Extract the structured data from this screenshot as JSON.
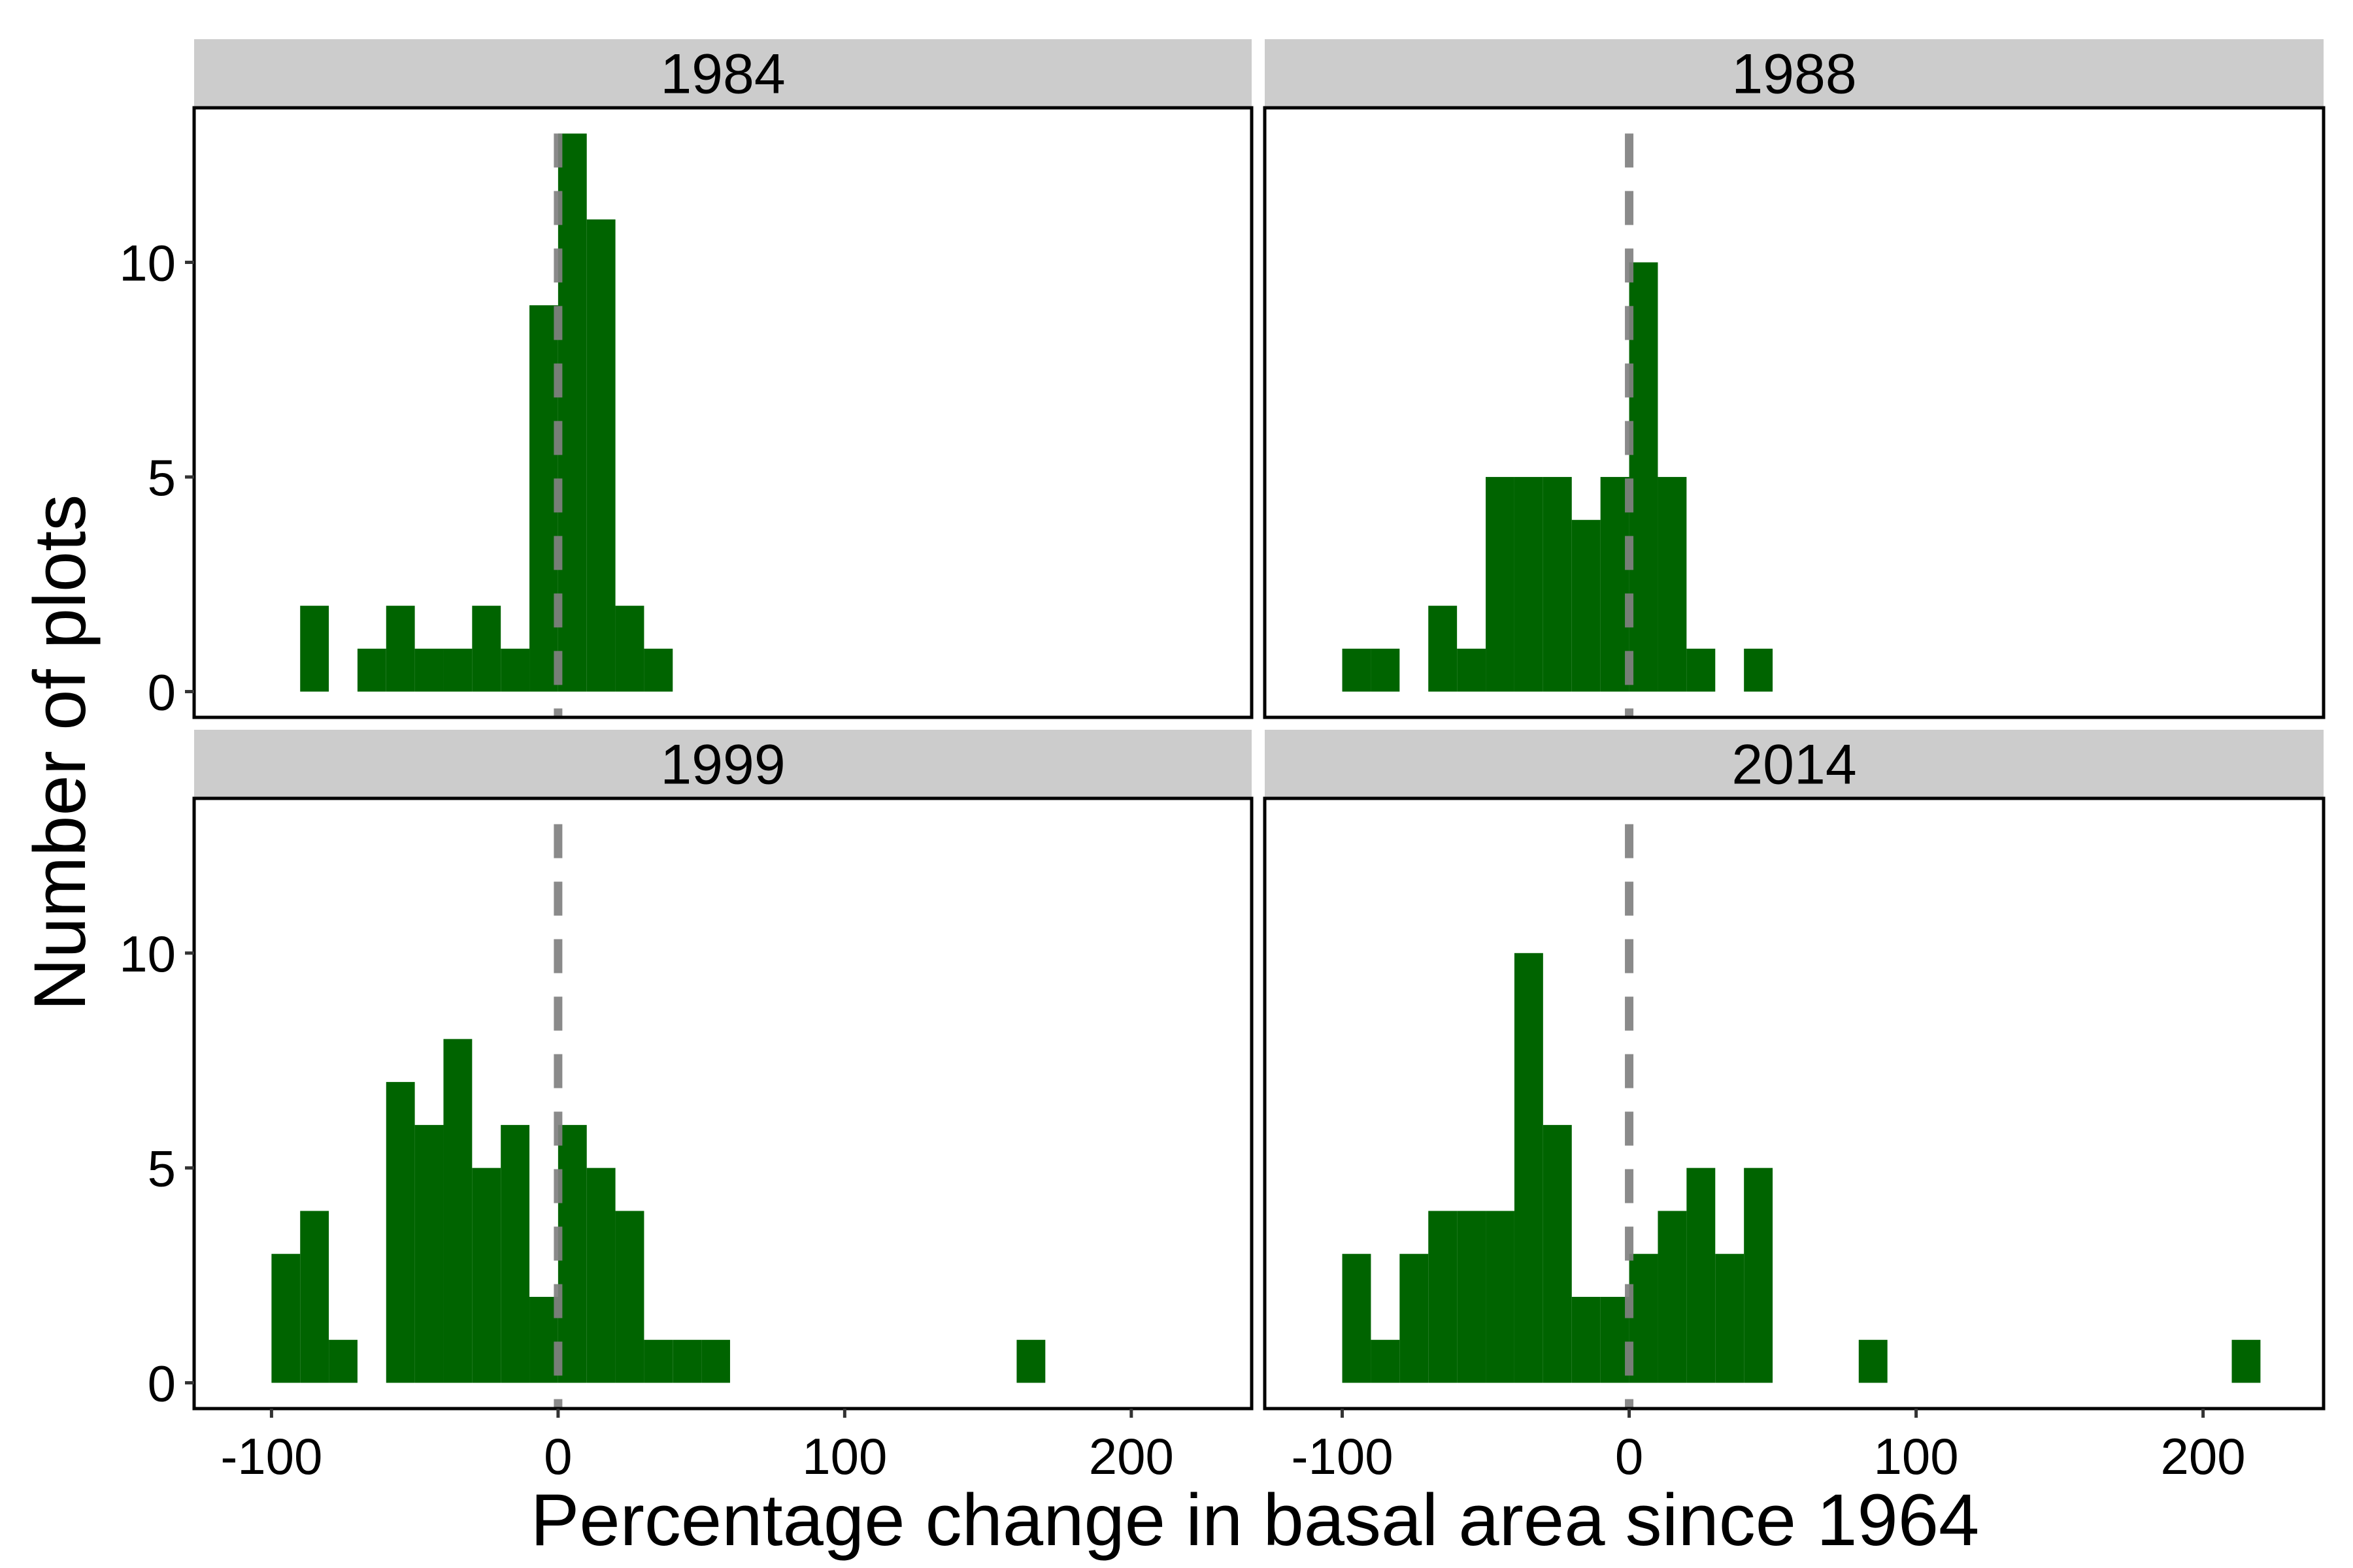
{
  "chart_data": {
    "type": "bar",
    "xlabel": "Percentage change in basal area since 1964",
    "ylabel": "Number of plots",
    "xlim": [
      -127,
      242
    ],
    "ylim": [
      -0.6,
      13.6
    ],
    "x_ticks": [
      -100,
      0,
      100,
      200
    ],
    "x_tick_labels": [
      "-100",
      "0",
      "100",
      "200"
    ],
    "y_ticks": [
      0,
      5,
      10
    ],
    "y_tick_labels": [
      "0",
      "5",
      "10"
    ],
    "bin_width": 10,
    "reference_line": {
      "x": 0,
      "style": "dashed",
      "color": "#808080"
    },
    "bar_color": "#006400",
    "strip_color": "#cccccc",
    "grid": false,
    "panels": [
      {
        "title": "1984",
        "bins": [
          {
            "x": [
              -90,
              -80
            ],
            "y": 2
          },
          {
            "x": [
              -70,
              -60
            ],
            "y": 1
          },
          {
            "x": [
              -60,
              -50
            ],
            "y": 2
          },
          {
            "x": [
              -50,
              -40
            ],
            "y": 1
          },
          {
            "x": [
              -40,
              -30
            ],
            "y": 1
          },
          {
            "x": [
              -30,
              -20
            ],
            "y": 2
          },
          {
            "x": [
              -20,
              -10
            ],
            "y": 1
          },
          {
            "x": [
              -10,
              0
            ],
            "y": 9
          },
          {
            "x": [
              0,
              10
            ],
            "y": 13
          },
          {
            "x": [
              10,
              20
            ],
            "y": 11
          },
          {
            "x": [
              20,
              30
            ],
            "y": 2
          },
          {
            "x": [
              30,
              40
            ],
            "y": 1
          }
        ]
      },
      {
        "title": "1988",
        "bins": [
          {
            "x": [
              -100,
              -90
            ],
            "y": 1
          },
          {
            "x": [
              -90,
              -80
            ],
            "y": 1
          },
          {
            "x": [
              -70,
              -60
            ],
            "y": 2
          },
          {
            "x": [
              -60,
              -50
            ],
            "y": 1
          },
          {
            "x": [
              -50,
              -40
            ],
            "y": 5
          },
          {
            "x": [
              -40,
              -30
            ],
            "y": 5
          },
          {
            "x": [
              -30,
              -20
            ],
            "y": 5
          },
          {
            "x": [
              -20,
              -10
            ],
            "y": 4
          },
          {
            "x": [
              -10,
              0
            ],
            "y": 5
          },
          {
            "x": [
              0,
              10
            ],
            "y": 10
          },
          {
            "x": [
              10,
              20
            ],
            "y": 5
          },
          {
            "x": [
              20,
              30
            ],
            "y": 1
          },
          {
            "x": [
              40,
              50
            ],
            "y": 1
          }
        ]
      },
      {
        "title": "1999",
        "bins": [
          {
            "x": [
              -100,
              -90
            ],
            "y": 3
          },
          {
            "x": [
              -90,
              -80
            ],
            "y": 4
          },
          {
            "x": [
              -80,
              -70
            ],
            "y": 1
          },
          {
            "x": [
              -60,
              -50
            ],
            "y": 7
          },
          {
            "x": [
              -50,
              -40
            ],
            "y": 6
          },
          {
            "x": [
              -40,
              -30
            ],
            "y": 8
          },
          {
            "x": [
              -30,
              -20
            ],
            "y": 5
          },
          {
            "x": [
              -20,
              -10
            ],
            "y": 6
          },
          {
            "x": [
              -10,
              0
            ],
            "y": 2
          },
          {
            "x": [
              0,
              10
            ],
            "y": 6
          },
          {
            "x": [
              10,
              20
            ],
            "y": 5
          },
          {
            "x": [
              20,
              30
            ],
            "y": 4
          },
          {
            "x": [
              30,
              40
            ],
            "y": 1
          },
          {
            "x": [
              40,
              50
            ],
            "y": 1
          },
          {
            "x": [
              50,
              60
            ],
            "y": 1
          },
          {
            "x": [
              160,
              170
            ],
            "y": 1
          }
        ]
      },
      {
        "title": "2014",
        "bins": [
          {
            "x": [
              -100,
              -90
            ],
            "y": 3
          },
          {
            "x": [
              -90,
              -80
            ],
            "y": 1
          },
          {
            "x": [
              -80,
              -70
            ],
            "y": 3
          },
          {
            "x": [
              -70,
              -60
            ],
            "y": 4
          },
          {
            "x": [
              -60,
              -50
            ],
            "y": 4
          },
          {
            "x": [
              -50,
              -40
            ],
            "y": 4
          },
          {
            "x": [
              -40,
              -30
            ],
            "y": 10
          },
          {
            "x": [
              -30,
              -20
            ],
            "y": 6
          },
          {
            "x": [
              -20,
              -10
            ],
            "y": 2
          },
          {
            "x": [
              -10,
              0
            ],
            "y": 2
          },
          {
            "x": [
              0,
              10
            ],
            "y": 3
          },
          {
            "x": [
              10,
              20
            ],
            "y": 4
          },
          {
            "x": [
              20,
              30
            ],
            "y": 5
          },
          {
            "x": [
              30,
              40
            ],
            "y": 3
          },
          {
            "x": [
              40,
              50
            ],
            "y": 5
          },
          {
            "x": [
              80,
              90
            ],
            "y": 1
          },
          {
            "x": [
              210,
              220
            ],
            "y": 1
          }
        ]
      }
    ]
  }
}
